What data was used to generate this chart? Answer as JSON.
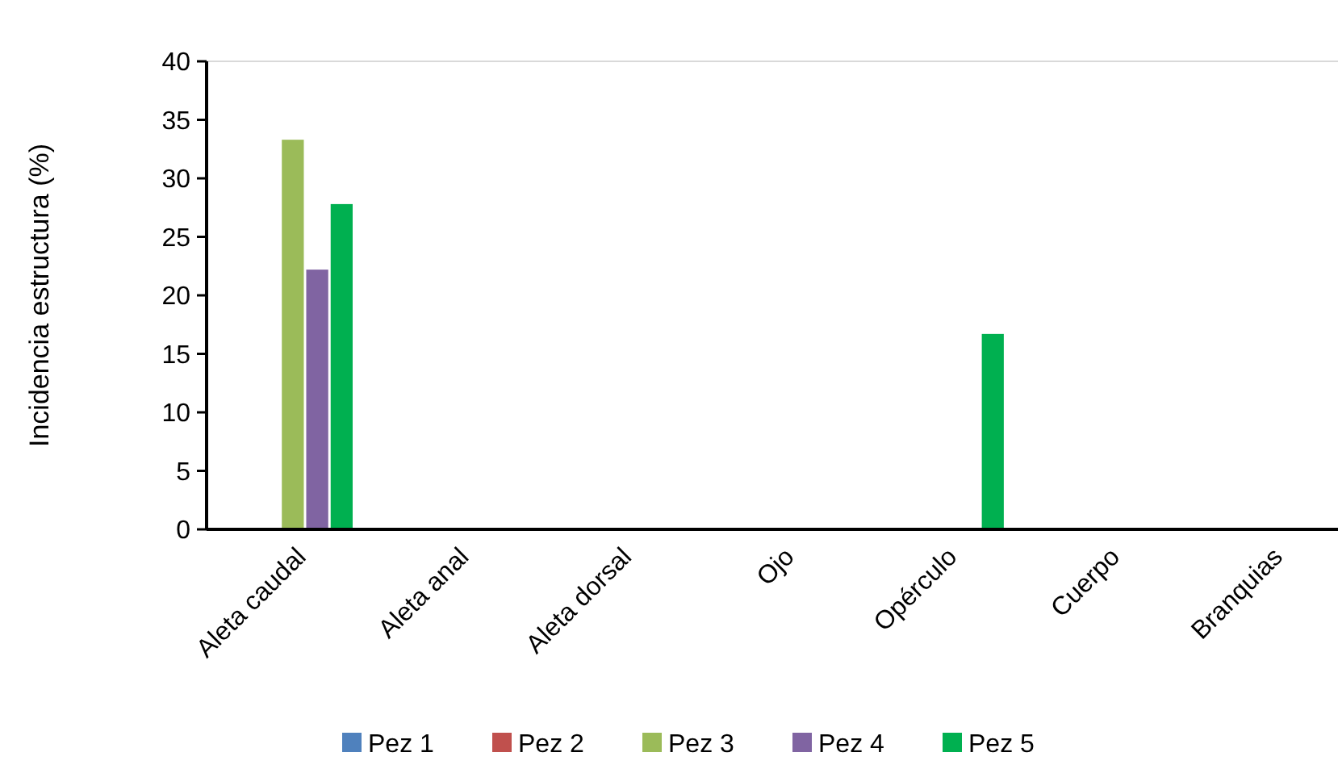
{
  "chart_data": {
    "type": "bar",
    "ylabel": "Incidencia estructura (%)",
    "categories": [
      "Aleta caudal",
      "Aleta anal",
      "Aleta dorsal",
      "Ojo",
      "Opérculo",
      "Cuerpo",
      "Branquias"
    ],
    "series": [
      {
        "name": "Pez 1",
        "color": "#4f81bd",
        "values": [
          0,
          0,
          0,
          0,
          0,
          0,
          0
        ]
      },
      {
        "name": "Pez 2",
        "color": "#c0504d",
        "values": [
          0,
          0,
          0,
          0,
          0,
          0,
          0
        ]
      },
      {
        "name": "Pez 3",
        "color": "#9bbb59",
        "values": [
          33.3,
          0,
          0,
          0,
          0,
          0,
          0
        ]
      },
      {
        "name": "Pez 4",
        "color": "#8064a2",
        "values": [
          22.2,
          0,
          0,
          0,
          0,
          0,
          0
        ]
      },
      {
        "name": "Pez 5",
        "color": "#00b050",
        "values": [
          27.8,
          0,
          0,
          0,
          16.7,
          0,
          0
        ]
      }
    ],
    "ylim": [
      0,
      40
    ],
    "yticks": [
      0,
      5,
      10,
      15,
      20,
      25,
      30,
      35,
      40
    ],
    "grid": false,
    "legend": "bottom"
  }
}
